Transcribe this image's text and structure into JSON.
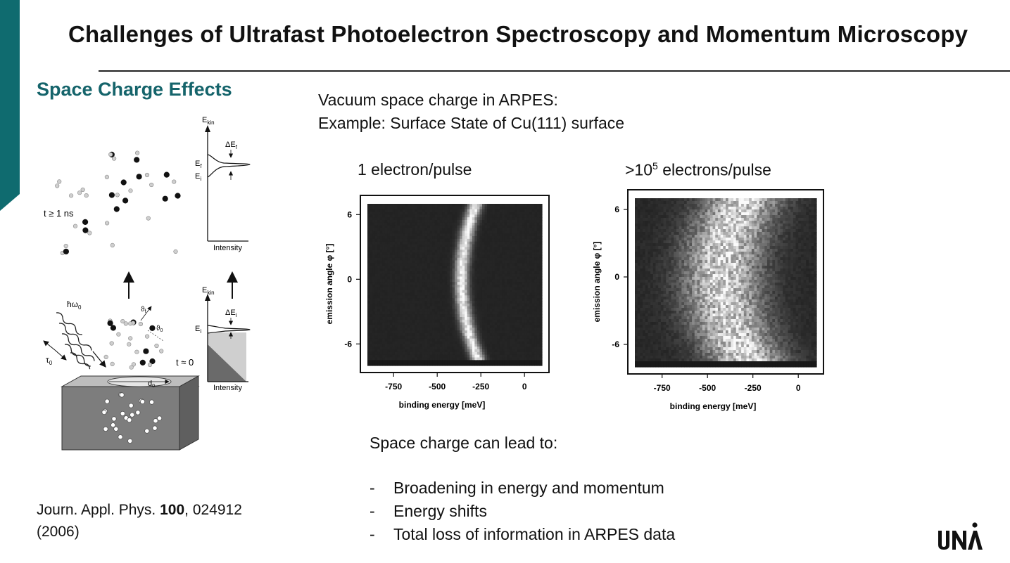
{
  "slide": {
    "title": "Challenges of Ultrafast Photoelectron Spectroscopy and Momentum Microscopy",
    "section_heading": "Space Charge Effects",
    "intro_line1": "Vacuum space charge in ARPES:",
    "intro_line2": "Example: Surface State of Cu(111) surface",
    "panel_left_label": "1 electron/pulse",
    "panel_right_label_prefix": ">10",
    "panel_right_label_exp": "5",
    "panel_right_label_suffix": " electrons/pulse",
    "conclusion_heading": "Space charge can lead to:",
    "bullets": [
      "Broadening in energy and momentum",
      "Energy shifts",
      "Total loss of information in ARPES data"
    ],
    "bullet_marker": "-",
    "reference_prefix": "Journ. Appl. Phys. ",
    "reference_volume": "100",
    "reference_suffix": ", 024912",
    "reference_year": "(2006)",
    "logo_text": "UNA"
  },
  "schematic": {
    "upper_time": "t ≥ 1 ns",
    "lower_time": "t ≈ 0",
    "ekin_label": "E",
    "ekin_sub": "kin",
    "intensity_label": "Intensity",
    "ef_label": "E",
    "ef_sub": "f",
    "ei_label": "E",
    "ei_sub": "i",
    "delta_ef": "ΔE",
    "delta_ei": "ΔE",
    "photon_label": "ħω",
    "photon_sub": "0",
    "tau_label": "τ",
    "tau_sub": "0",
    "d_label": "d",
    "d_sub": "0",
    "theta_f": "ϑ",
    "theta_f_sub": "f",
    "theta_0": "ϑ",
    "theta_0_sub": "0"
  },
  "chart_data": [
    {
      "type": "heatmap",
      "title": "1 electron/pulse",
      "xlabel": "binding energy [meV]",
      "ylabel": "emission angle φ [°]",
      "xticks": [
        -750,
        -500,
        -250,
        0
      ],
      "yticks": [
        6,
        0,
        -6
      ],
      "xlim": [
        -900,
        100
      ],
      "ylim": [
        -8,
        7
      ],
      "colormap": "grayscale",
      "feature": "narrow bright parabolic surface-state band, apex near -360 meV at 0°, ends near -300 meV at ±6°"
    },
    {
      "type": "heatmap",
      "title": ">10^5 electrons/pulse",
      "xlabel": "binding energy [meV]",
      "ylabel": "emission angle φ [°]",
      "xticks": [
        -750,
        -500,
        -250,
        0
      ],
      "yticks": [
        6,
        0,
        -6
      ],
      "xlim": [
        -900,
        100
      ],
      "ylim": [
        -8,
        7
      ],
      "colormap": "grayscale",
      "feature": "broad diffuse bright region centered near -420 meV, band shifted and smeared"
    }
  ]
}
